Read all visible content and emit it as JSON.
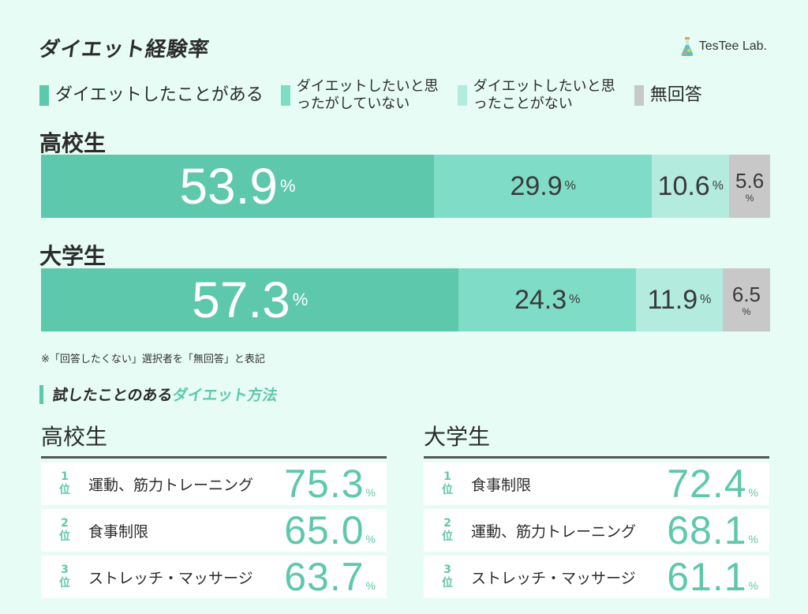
{
  "title": "ダイエット経験率",
  "brand": "TesTee Lab.",
  "colors": {
    "c1": "#5ec8ac",
    "c2": "#7fdcc6",
    "c3": "#b3ebdf",
    "c4": "#c8c8c8",
    "accent": "#5ec8ac",
    "background": "#e6fcf4"
  },
  "legend": [
    {
      "label": "ダイエットしたことがある",
      "color": "#5ec8ac"
    },
    {
      "label": "ダイエットしたいと思ったがしていない",
      "color": "#7fdcc6"
    },
    {
      "label": "ダイエットしたいと思ったことがない",
      "color": "#b3ebdf"
    },
    {
      "label": "無回答",
      "color": "#c8c8c8"
    }
  ],
  "chart_data": {
    "type": "bar",
    "stacked": true,
    "orientation": "horizontal",
    "unit": "%",
    "categories": [
      "高校生",
      "大学生"
    ],
    "series": [
      {
        "name": "ダイエットしたことがある",
        "values": [
          53.9,
          57.3
        ]
      },
      {
        "name": "ダイエットしたいと思ったがしていない",
        "values": [
          29.9,
          24.3
        ]
      },
      {
        "name": "ダイエットしたいと思ったことがない",
        "values": [
          10.6,
          11.9
        ]
      },
      {
        "name": "無回答",
        "values": [
          5.6,
          6.5
        ]
      }
    ]
  },
  "bars": [
    {
      "label": "高校生",
      "segments": [
        {
          "value": "53.9",
          "pct": "%"
        },
        {
          "value": "29.9",
          "pct": "%"
        },
        {
          "value": "10.6",
          "pct": "%"
        },
        {
          "value": "5.6",
          "pct": "%"
        }
      ]
    },
    {
      "label": "大学生",
      "segments": [
        {
          "value": "57.3",
          "pct": "%"
        },
        {
          "value": "24.3",
          "pct": "%"
        },
        {
          "value": "11.9",
          "pct": "%"
        },
        {
          "value": "6.5",
          "pct": "%"
        }
      ]
    }
  ],
  "note": "※「回答したくない」選択者を「無回答」と表記",
  "methods": {
    "title_part1": "試したことのある",
    "title_part2": "ダイエット方法",
    "panels": [
      {
        "heading": "高校生",
        "rows": [
          {
            "rank": "1",
            "rank_suffix": "位",
            "name": "運動、筋力トレーニング",
            "value": "75.3",
            "pct": "%"
          },
          {
            "rank": "2",
            "rank_suffix": "位",
            "name": "食事制限",
            "value": "65.0",
            "pct": "%"
          },
          {
            "rank": "3",
            "rank_suffix": "位",
            "name": "ストレッチ・マッサージ",
            "value": "63.7",
            "pct": "%"
          }
        ]
      },
      {
        "heading": "大学生",
        "rows": [
          {
            "rank": "1",
            "rank_suffix": "位",
            "name": "食事制限",
            "value": "72.4",
            "pct": "%"
          },
          {
            "rank": "2",
            "rank_suffix": "位",
            "name": "運動、筋力トレーニング",
            "value": "68.1",
            "pct": "%"
          },
          {
            "rank": "3",
            "rank_suffix": "位",
            "name": "ストレッチ・マッサージ",
            "value": "61.1",
            "pct": "%"
          }
        ]
      }
    ]
  }
}
